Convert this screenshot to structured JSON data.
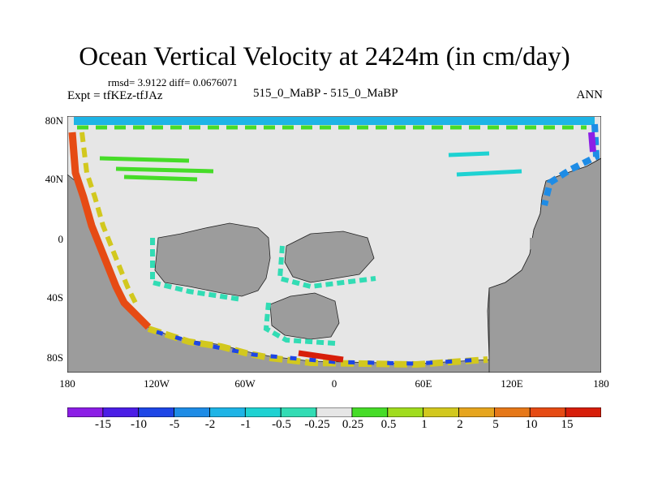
{
  "title": "Ocean Vertical Velocity at 2424m (in cm/day)",
  "stats": "rmsd= 3.9122 diff= 0.0676071",
  "expt": "Expt = tfKEz-tfJAz",
  "case": "515_0_MaBP - 515_0_MaBP",
  "season": "ANN",
  "y_ticks": [
    "80N",
    "40N",
    "0",
    "40S",
    "80S"
  ],
  "x_ticks": [
    "180",
    "120W",
    "60W",
    "0",
    "60E",
    "120E",
    "180"
  ],
  "colorbar": {
    "labels": [
      "-15",
      "-10",
      "-5",
      "-2",
      "-1",
      "-0.5",
      "-0.25",
      "0.25",
      "0.5",
      "1",
      "2",
      "5",
      "10",
      "15"
    ],
    "colors": [
      "#8c1ee6",
      "#4b1ee6",
      "#1e46e6",
      "#1e8ce6",
      "#1eb4e6",
      "#1ed2d2",
      "#32dcb4",
      "#e6e6e6",
      "#46dc28",
      "#a0dc1e",
      "#d2c81e",
      "#e6a51e",
      "#e67819",
      "#e64b14",
      "#d71e0a"
    ]
  },
  "colors": {
    "land": "#9c9c9c",
    "ocean_neutral": "#e6e6e6",
    "coast": "#222222"
  }
}
